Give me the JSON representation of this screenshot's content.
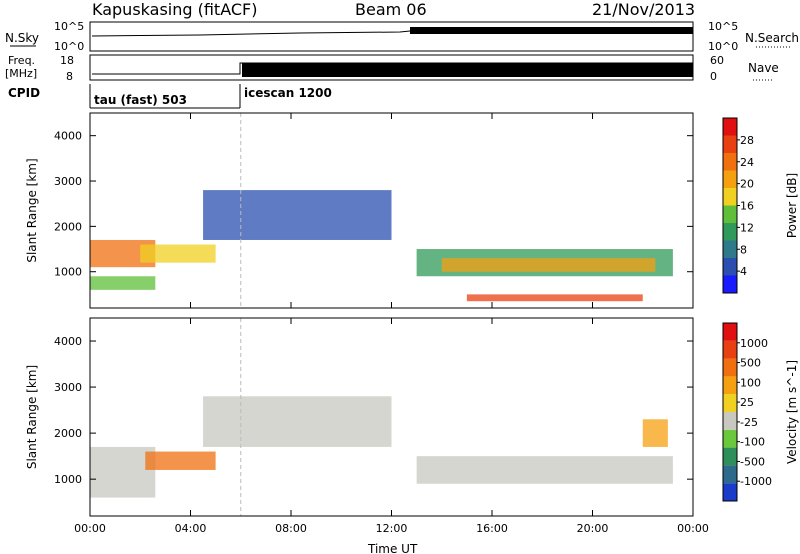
{
  "header": {
    "station": "Kapuskasing (fitACF)",
    "beam": "Beam 06",
    "date": "21/Nov/2013"
  },
  "top_panels": {
    "nsky_label": "N.Sky",
    "nsky_ticks": [
      "10^5",
      "10^0"
    ],
    "nsearch_label": "N.Search",
    "nsearch_ticks": [
      "10^5",
      "10^0"
    ],
    "freq_label_1": "Freq.",
    "freq_label_2": "[MHz]",
    "freq_ticks": [
      "18",
      "8"
    ],
    "nave_label": "Nave",
    "nave_ticks": [
      "60",
      "0"
    ],
    "cpid_label": "CPID",
    "cpid_segments": [
      {
        "label": "tau (fast) 503",
        "start_hour": 0
      },
      {
        "label": "icescan 1200",
        "start_hour": 6
      }
    ]
  },
  "chart_data": [
    {
      "type": "heatmap",
      "title": "",
      "ylabel": "Slant Range [km]",
      "xlabel": "Time UT",
      "ylim": [
        200,
        4500
      ],
      "yticks": [
        "1000",
        "2000",
        "3000",
        "4000"
      ],
      "xlim_hours": [
        0,
        24
      ],
      "xticks": [
        "00:00",
        "04:00",
        "08:00",
        "12:00",
        "16:00",
        "20:00",
        "00:00"
      ],
      "colorbar": {
        "label": "Power [dB]",
        "ticks": [
          "4",
          "8",
          "12",
          "16",
          "20",
          "24",
          "28"
        ],
        "colors": [
          "#1a1aff",
          "#2a4fb0",
          "#2e7a8a",
          "#2f9a5a",
          "#5fbf3a",
          "#f0d020",
          "#f5a010",
          "#f07010",
          "#e84010",
          "#e01010"
        ]
      },
      "regions": [
        {
          "t": [
            0.0,
            2.6
          ],
          "r": [
            600,
            900
          ],
          "color": "#5fbf3a"
        },
        {
          "t": [
            0.0,
            2.6
          ],
          "r": [
            1100,
            1700
          ],
          "color": "#f07010"
        },
        {
          "t": [
            2.0,
            5.0
          ],
          "r": [
            1200,
            1600
          ],
          "color": "#f0d020"
        },
        {
          "t": [
            4.5,
            12.0
          ],
          "r": [
            1700,
            2800
          ],
          "color": "#2a4fb0"
        },
        {
          "t": [
            13.0,
            23.2
          ],
          "r": [
            900,
            1500
          ],
          "color": "#2f9a5a"
        },
        {
          "t": [
            14.0,
            22.5
          ],
          "r": [
            1000,
            1300
          ],
          "color": "#f5a010"
        },
        {
          "t": [
            15.0,
            22.0
          ],
          "r": [
            350,
            500
          ],
          "color": "#e84010"
        }
      ]
    },
    {
      "type": "heatmap",
      "title": "",
      "ylabel": "Slant Range [km]",
      "xlabel": "Time UT",
      "ylim": [
        200,
        4500
      ],
      "yticks": [
        "1000",
        "2000",
        "3000",
        "4000"
      ],
      "xlim_hours": [
        0,
        24
      ],
      "xticks": [
        "00:00",
        "04:00",
        "08:00",
        "12:00",
        "16:00",
        "20:00",
        "00:00"
      ],
      "colorbar": {
        "label": "Velocity [m s^-1]",
        "ticks": [
          "1000",
          "500",
          "100",
          "25",
          "-25",
          "-100",
          "-500",
          "-1000"
        ],
        "colors": [
          "#1a3cc8",
          "#2e6a8a",
          "#2f8f5a",
          "#6ac83a",
          "#c8c8c0",
          "#f0d020",
          "#f5a010",
          "#f07010",
          "#e84010",
          "#e01010"
        ]
      },
      "regions": [
        {
          "t": [
            0.0,
            2.6
          ],
          "r": [
            600,
            1700
          ],
          "color": "#c8c8c0"
        },
        {
          "t": [
            2.2,
            5.0
          ],
          "r": [
            1200,
            1600
          ],
          "color": "#f07010"
        },
        {
          "t": [
            4.5,
            12.0
          ],
          "r": [
            1700,
            2800
          ],
          "color": "#c8c8c0"
        },
        {
          "t": [
            13.0,
            23.2
          ],
          "r": [
            900,
            1500
          ],
          "color": "#c8c8c0"
        },
        {
          "t": [
            22.0,
            23.0
          ],
          "r": [
            1700,
            2300
          ],
          "color": "#f5a010"
        }
      ]
    }
  ],
  "xaxis_title": "Time UT"
}
